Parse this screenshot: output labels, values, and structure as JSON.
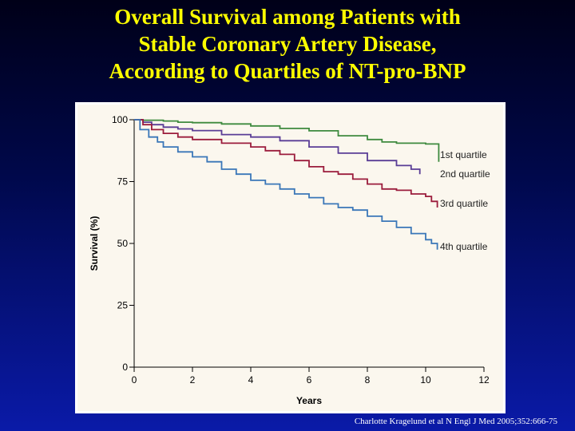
{
  "slide": {
    "title_lines": [
      "Overall Survival among Patients with",
      "Stable Coronary Artery Disease,",
      "According to Quartiles of NT-pro-BNP"
    ],
    "citation": "Charlotte Kragelund et al N Engl J Med 2005;352:666-75"
  },
  "chart_data": {
    "type": "line",
    "xlabel": "Years",
    "ylabel": "Survival (%)",
    "xlim": [
      0,
      12
    ],
    "ylim": [
      0,
      100
    ],
    "x_ticks": [
      0,
      2,
      4,
      6,
      8,
      10,
      12
    ],
    "y_ticks": [
      0,
      25,
      50,
      75,
      100
    ],
    "grid": false,
    "legend": "inline-right",
    "background": "#fbf7ee",
    "series": [
      {
        "name": "1st quartile",
        "color": "#3e8a3e",
        "x": [
          0,
          0.3,
          1,
          1.5,
          2,
          3,
          4,
          5,
          6,
          7,
          8,
          8.5,
          9,
          10,
          10.45,
          10.45
        ],
        "y": [
          100,
          99.8,
          99.5,
          99,
          98.8,
          98.3,
          97.5,
          96.5,
          95.5,
          93.5,
          92,
          91,
          90.5,
          90.2,
          90,
          83
        ]
      },
      {
        "name": "2nd quartile",
        "color": "#5a3d96",
        "x": [
          0,
          0.3,
          0.6,
          1,
          1.5,
          2,
          3,
          4,
          5,
          6,
          7,
          8,
          9,
          9.5,
          9.8
        ],
        "y": [
          100,
          99,
          98,
          97,
          96.3,
          95.6,
          94,
          93,
          91.5,
          89,
          86.5,
          83.5,
          81.5,
          80,
          78
        ]
      },
      {
        "name": "3rd quartile",
        "color": "#9b1c3c",
        "x": [
          0,
          0.3,
          0.6,
          1,
          1.5,
          2,
          3,
          4,
          4.5,
          5,
          5.5,
          6,
          6.5,
          7,
          7.5,
          8,
          8.5,
          9,
          9.5,
          10,
          10.2,
          10.4
        ],
        "y": [
          100,
          98,
          96,
          94.5,
          93,
          92,
          90.5,
          89,
          87.5,
          86,
          83.5,
          81,
          79,
          78,
          76,
          74,
          72,
          71.5,
          70,
          69,
          67,
          64.5
        ]
      },
      {
        "name": "4th quartile",
        "color": "#3a77b8",
        "x": [
          0,
          0.2,
          0.5,
          0.8,
          1,
          1.5,
          2,
          2.5,
          3,
          3.5,
          4,
          4.5,
          5,
          5.5,
          6,
          6.5,
          7,
          7.5,
          8,
          8.5,
          9,
          9.5,
          10,
          10.2,
          10.4
        ],
        "y": [
          100,
          96,
          93,
          91,
          89,
          87,
          85,
          83,
          80,
          78,
          75.5,
          74,
          72,
          70,
          68.5,
          66,
          64.5,
          63.5,
          61,
          59,
          56.5,
          54,
          51.5,
          50,
          47.5
        ]
      }
    ]
  }
}
